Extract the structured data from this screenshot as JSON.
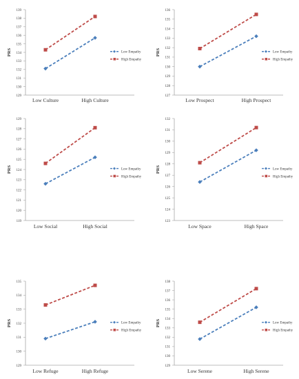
{
  "figure": {
    "ylabel": "PRS"
  },
  "legend_labels": [
    "Low Empathy",
    "High Empathy"
  ],
  "colors": {
    "low": "#4a7ebb",
    "high": "#be4b48",
    "axis": "#a6a6a6",
    "text": "#333333"
  },
  "chart_data": [
    {
      "type": "line",
      "categories": [
        "Low Culture",
        "High Culture"
      ],
      "ylabel": "PRS",
      "ylim": [
        129,
        139
      ],
      "yticks": [
        129,
        130,
        131,
        132,
        133,
        134,
        135,
        136,
        137,
        138,
        139
      ],
      "series": [
        {
          "name": "Low Empathy",
          "values": [
            132.1,
            135.7
          ]
        },
        {
          "name": "High Empathy",
          "values": [
            134.3,
            138.2
          ]
        }
      ],
      "legend": "right"
    },
    {
      "type": "line",
      "categories": [
        "Low Prospect",
        "High Prospect"
      ],
      "ylabel": "PRS",
      "ylim": [
        127,
        136
      ],
      "yticks": [
        127,
        128,
        129,
        130,
        131,
        132,
        133,
        134,
        135,
        136
      ],
      "series": [
        {
          "name": "Low Empathy",
          "values": [
            130.0,
            133.2
          ]
        },
        {
          "name": "High Empathy",
          "values": [
            131.9,
            135.5
          ]
        }
      ],
      "legend": "right"
    },
    {
      "type": "line",
      "categories": [
        "Low Social",
        "High Social"
      ],
      "ylabel": "PRS",
      "ylim": [
        119,
        129
      ],
      "yticks": [
        119,
        120,
        121,
        122,
        123,
        124,
        125,
        126,
        127,
        128,
        129
      ],
      "series": [
        {
          "name": "Low Empathy",
          "values": [
            122.6,
            125.2
          ]
        },
        {
          "name": "High Empathy",
          "values": [
            124.6,
            128.1
          ]
        }
      ],
      "legend": "right"
    },
    {
      "type": "line",
      "categories": [
        "Low Space",
        "High Space"
      ],
      "ylabel": "PRS",
      "ylim": [
        123,
        132
      ],
      "yticks": [
        123,
        124,
        125,
        126,
        127,
        128,
        129,
        130,
        131,
        132
      ],
      "series": [
        {
          "name": "Low Empathy",
          "values": [
            126.4,
            129.2
          ]
        },
        {
          "name": "High Empathy",
          "values": [
            128.1,
            131.2
          ]
        }
      ],
      "legend": "right"
    },
    {
      "type": "line",
      "categories": [
        "Low Refuge",
        "High Refuge"
      ],
      "ylabel": "PRS",
      "ylim": [
        129,
        135
      ],
      "yticks": [
        129,
        130,
        131,
        132,
        133,
        134,
        135
      ],
      "series": [
        {
          "name": "Low Empathy",
          "values": [
            130.9,
            132.1
          ]
        },
        {
          "name": "High Empathy",
          "values": [
            133.3,
            134.7
          ]
        }
      ],
      "legend": "right"
    },
    {
      "type": "line",
      "categories": [
        "Low Serene",
        "High Serene"
      ],
      "ylabel": "PRS",
      "ylim": [
        129,
        138
      ],
      "yticks": [
        129,
        130,
        131,
        132,
        133,
        134,
        135,
        136,
        137,
        138
      ],
      "series": [
        {
          "name": "Low Empathy",
          "values": [
            131.8,
            135.2
          ]
        },
        {
          "name": "High Empathy",
          "values": [
            133.6,
            137.2
          ]
        }
      ],
      "legend": "right"
    }
  ]
}
